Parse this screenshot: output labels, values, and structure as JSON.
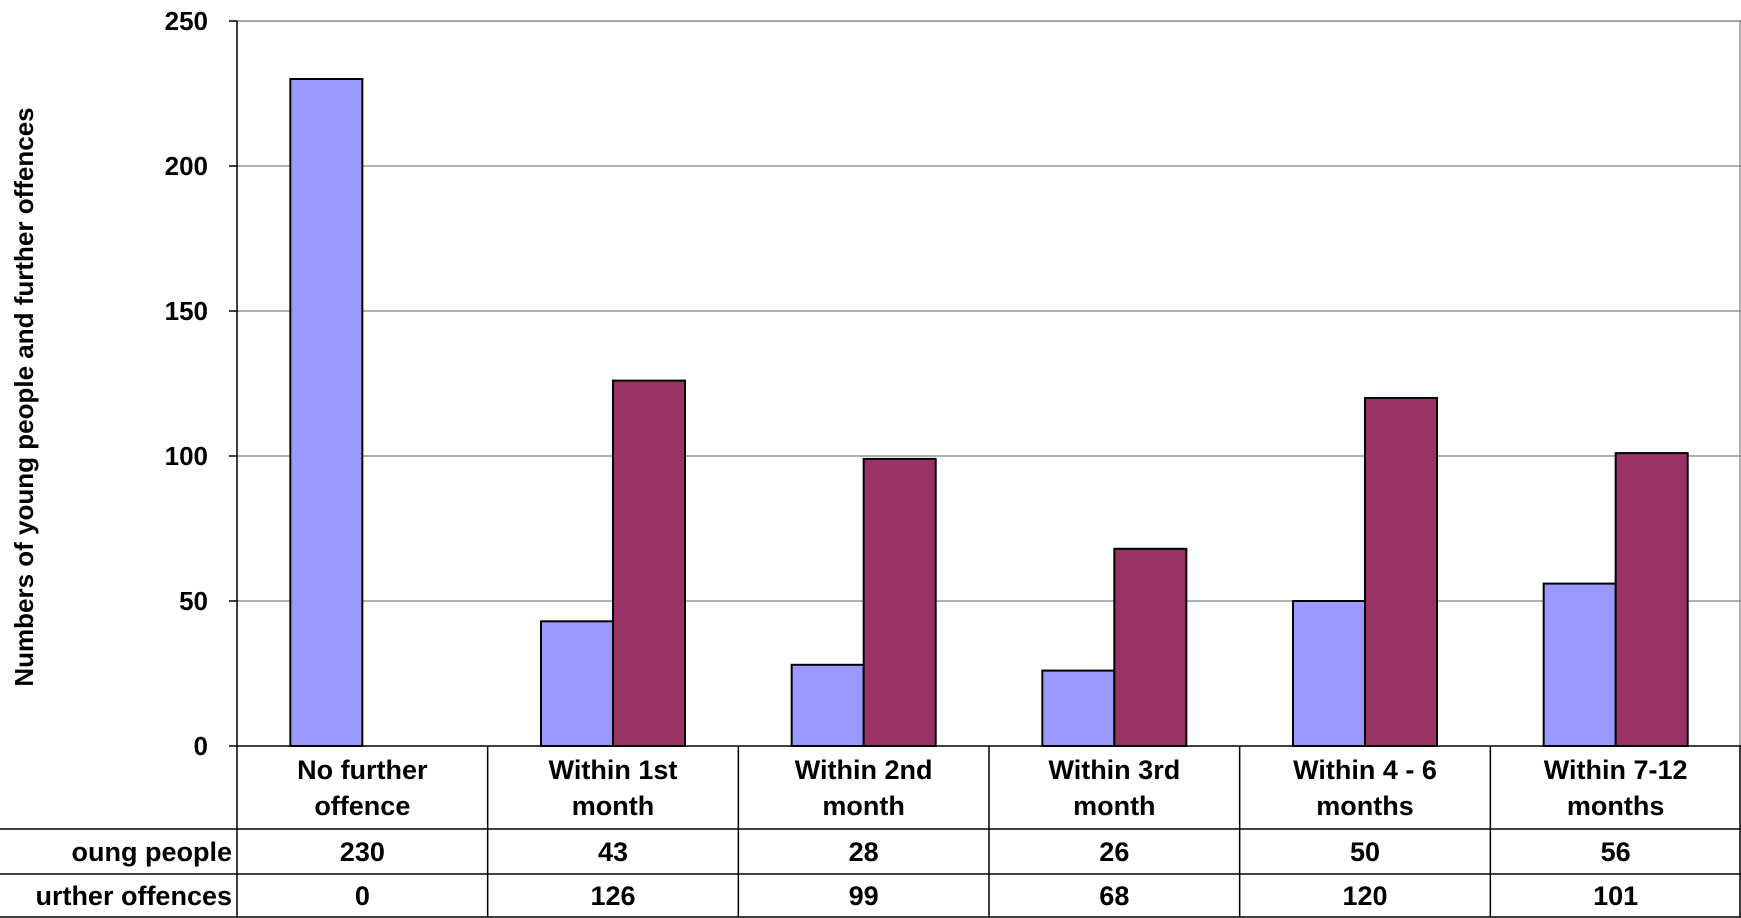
{
  "chart_data": {
    "type": "bar",
    "title": "",
    "xlabel": "",
    "ylabel": "Numbers of young people and further offences",
    "ylim": [
      0,
      250
    ],
    "yticks": [
      0,
      50,
      100,
      150,
      200,
      250
    ],
    "grid": true,
    "categories": [
      [
        "No further",
        "offence"
      ],
      [
        "Within 1st",
        "month"
      ],
      [
        "Within 2nd",
        "month"
      ],
      [
        "Within 3rd",
        "month"
      ],
      [
        "Within 4 - 6",
        "months"
      ],
      [
        "Within 7-12",
        "months"
      ]
    ],
    "series": [
      {
        "name": "oung people",
        "color": "#9999ff",
        "values": [
          230,
          43,
          28,
          26,
          50,
          56
        ]
      },
      {
        "name": "urther offences",
        "color": "#993366",
        "values": [
          0,
          126,
          99,
          68,
          120,
          101
        ]
      }
    ],
    "data_table": true
  }
}
